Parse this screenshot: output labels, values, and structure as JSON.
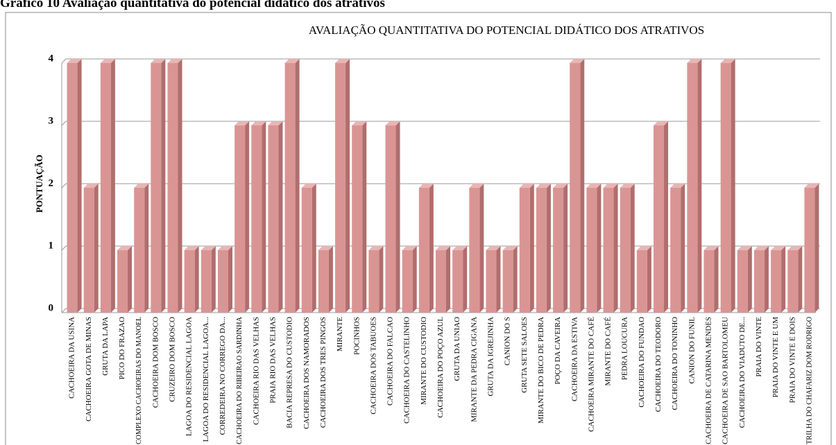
{
  "chart_data": {
    "type": "bar",
    "caption": "Gráfico 10 Avaliação quantitativa do potencial didático dos atrativos",
    "title": "AVALIAÇÃO QUANTITATIVA DO POTENCIAL DIDÁTICO DOS ATRATIVOS",
    "y_label": "PONTUAÇÃO",
    "categories": [
      "CACHOEIRA DA USINA",
      "CACHOEIRA GOTA DE MINAS",
      "GRUTA DA LAPA",
      "PICO DO FRAZAO",
      "COMPLEXO CACHOEIRAS DO MANOEL",
      "CACHOEIRA DOM BOSCO",
      "CRUZEIRO DOM BOSCO",
      "LAGOA DO RESIDENCIAL LAGOA",
      "LAGOA DO RESIDENCIAL LAGOA...",
      "CORREDEIRA NO CORREGO DA...",
      "CACHOEIRA DO RIBEIRAO SARDINHA",
      "CACHOEIRA RIO DAS VELHAS",
      "PRAIA RIO DAS VELHAS",
      "BACIA REPRESA DO CUSTODIO",
      "CACHOEIRA DOS NAMORADOS",
      "CACHOEIRA DOS TRES PINGOS",
      "MIRANTE",
      "POCINHOS",
      "CACHOEIRA DOS TABUOES",
      "CACHOEIRA DO FALCAO",
      "CACHOEIRA DO CASTELINHO",
      "MIRANTE DO CUSTODIO",
      "CACHOEIRA DO POÇO AZUL",
      "GRUTA DA UNIAO",
      "MIRANTE DA PEDRA CIGANA",
      "GRUTA DA IGREJINHA",
      "CANION DO S",
      "GRUTA SETE SALOES",
      "MIRANTE DO BICO DE PEDRA",
      "POÇO DA CAVEIRA",
      "CACHOEIRA DA ESTIVA",
      "CACHOEIRA MIRANTE DO CAFÉ",
      "MIRANTE DO CAFÉ",
      "PEDRA LOUCURA",
      "CACHOEIRA DO FUNDAO",
      "CACHOEIRA DO TEODORO",
      "CACHOEIRA DO TONINHO",
      "CANION DO FUNIL",
      "CACHOEIRA DE CATARINA MENDES",
      "CACHOEIRA DE SAO BARTOLOMEU",
      "CACHOEIRA DO VIADUTO DE...",
      "PRAIA DO VINTE",
      "PRAIA DO VINTE E UM",
      "PRAIA DO VINTE E DOIS",
      "TRILHA DO CHAFARIZ DOM RODRIGO"
    ],
    "values": [
      4,
      2,
      4,
      1,
      2,
      4,
      4,
      1,
      1,
      1,
      3,
      3,
      3,
      4,
      2,
      1,
      4,
      3,
      1,
      3,
      1,
      2,
      1,
      1,
      2,
      1,
      1,
      2,
      2,
      2,
      4,
      2,
      2,
      2,
      1,
      3,
      2,
      4,
      1,
      4,
      1,
      1,
      1,
      1,
      2
    ],
    "color": "#d99594",
    "ylim": [
      0,
      4
    ],
    "yticks": [
      0,
      1,
      2,
      3,
      4
    ],
    "grid": true
  }
}
